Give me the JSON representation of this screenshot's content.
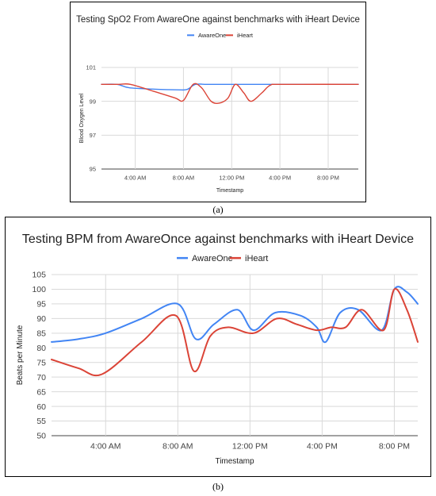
{
  "captions": {
    "a": "(a)",
    "b": "(b)"
  },
  "chart_data": [
    {
      "type": "line",
      "title": "Testing SpO2 From AwareOne against benchmarks with iHeart Device",
      "xlabel": "Timestamp",
      "ylabel": "Blood Oxygen Level",
      "x_ticks": [
        "4:00 AM",
        "8:00 AM",
        "12:00 PM",
        "4:00 PM",
        "8:00 PM"
      ],
      "x_tick_hours": [
        4,
        8,
        12,
        16,
        20
      ],
      "xlim_hours": [
        1.2,
        22.5
      ],
      "y_ticks": [
        95,
        97,
        99,
        101
      ],
      "ylim": [
        95,
        101
      ],
      "grid": true,
      "legend_position": "top-center",
      "series": [
        {
          "name": "AwareOne",
          "color": "#4285F4",
          "points": [
            [
              1.2,
              100
            ],
            [
              2.5,
              100
            ],
            [
              3.5,
              99.8
            ],
            [
              5.5,
              99.72
            ],
            [
              7.5,
              99.68
            ],
            [
              8.3,
              99.7
            ],
            [
              9.0,
              100
            ],
            [
              10.0,
              100
            ],
            [
              12.5,
              100
            ],
            [
              14.5,
              100
            ],
            [
              16.0,
              100
            ],
            [
              22.5,
              100
            ]
          ]
        },
        {
          "name": "iHeart",
          "color": "#DB4437",
          "points": [
            [
              1.2,
              100
            ],
            [
              2.6,
              100
            ],
            [
              3.6,
              100
            ],
            [
              5.5,
              99.6
            ],
            [
              7.3,
              99.2
            ],
            [
              8.0,
              99.05
            ],
            [
              8.8,
              100
            ],
            [
              9.5,
              99.8
            ],
            [
              10.3,
              99.0
            ],
            [
              11.0,
              98.9
            ],
            [
              11.7,
              99.2
            ],
            [
              12.3,
              100
            ],
            [
              13.0,
              99.5
            ],
            [
              13.6,
              99.0
            ],
            [
              14.5,
              99.5
            ],
            [
              15.2,
              99.95
            ],
            [
              16.2,
              100
            ],
            [
              22.5,
              100
            ]
          ]
        }
      ]
    },
    {
      "type": "line",
      "title": "Testing BPM from AwareOnce against benchmarks with iHeart Device",
      "xlabel": "Timestamp",
      "ylabel": "Beats per Minute",
      "x_ticks": [
        "4:00 AM",
        "8:00 AM",
        "12:00 PM",
        "4:00 PM",
        "8:00 PM"
      ],
      "x_tick_hours": [
        4,
        8,
        12,
        16,
        20
      ],
      "xlim_hours": [
        1.0,
        21.3
      ],
      "y_ticks": [
        50,
        55,
        60,
        65,
        70,
        75,
        80,
        85,
        90,
        95,
        100,
        105
      ],
      "ylim": [
        50,
        105
      ],
      "grid": true,
      "legend_position": "top-center",
      "series": [
        {
          "name": "AwareOne",
          "color": "#4285F4",
          "points": [
            [
              1.0,
              82
            ],
            [
              2.5,
              83
            ],
            [
              4.0,
              85
            ],
            [
              6.0,
              90
            ],
            [
              8.0,
              95
            ],
            [
              9.0,
              83
            ],
            [
              10.0,
              88
            ],
            [
              11.3,
              93
            ],
            [
              12.2,
              86
            ],
            [
              13.4,
              92
            ],
            [
              14.8,
              91
            ],
            [
              15.7,
              87
            ],
            [
              16.2,
              82
            ],
            [
              17.0,
              92
            ],
            [
              18.0,
              93
            ],
            [
              19.3,
              86
            ],
            [
              20.0,
              100
            ],
            [
              20.7,
              99
            ],
            [
              21.3,
              95
            ]
          ]
        },
        {
          "name": "iHeart",
          "color": "#DB4437",
          "points": [
            [
              1.0,
              76
            ],
            [
              2.5,
              73
            ],
            [
              3.8,
              71
            ],
            [
              6.0,
              82
            ],
            [
              7.9,
              91
            ],
            [
              8.9,
              72
            ],
            [
              9.8,
              84
            ],
            [
              10.8,
              87
            ],
            [
              12.2,
              85
            ],
            [
              13.5,
              90
            ],
            [
              14.6,
              88
            ],
            [
              15.7,
              86
            ],
            [
              16.5,
              87
            ],
            [
              17.3,
              87
            ],
            [
              18.2,
              93
            ],
            [
              19.4,
              86
            ],
            [
              20.0,
              100
            ],
            [
              20.7,
              93
            ],
            [
              21.3,
              82
            ]
          ]
        }
      ]
    }
  ]
}
